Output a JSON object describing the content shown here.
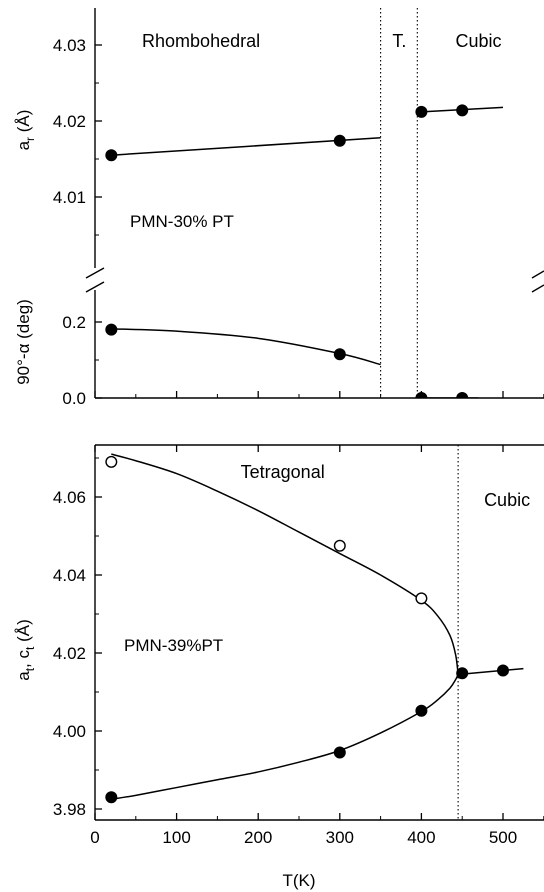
{
  "chart_data": [
    {
      "id": "a_r",
      "type": "scatter",
      "sample": "PMN-30% PT",
      "ylabel": "a_r (Å)",
      "ylabel_main": "a",
      "ylabel_sub": "r",
      "ylabel_unit": " (Å)",
      "xlim": [
        0,
        550
      ],
      "ylim": [
        4.0,
        4.035
      ],
      "yticks": [
        4.01,
        4.02,
        4.03
      ],
      "ytick_labels": [
        "4.01",
        "4.02",
        "4.03"
      ],
      "regions": [
        {
          "label": "Rhombohedral",
          "from": 0,
          "to": 350
        },
        {
          "label": "T.",
          "from": 350,
          "to": 395
        },
        {
          "label": "Cubic",
          "from": 395,
          "to": 550
        }
      ],
      "boundaries": [
        350,
        395
      ],
      "series": [
        {
          "marker": "filled",
          "x": [
            20,
            300,
            400,
            450
          ],
          "y": [
            4.0155,
            4.0174,
            4.0212,
            4.0214
          ]
        }
      ],
      "fits": [
        {
          "x": [
            20,
            350
          ],
          "y": [
            4.0155,
            4.0178
          ]
        },
        {
          "x": [
            400,
            500
          ],
          "y": [
            4.0212,
            4.0218
          ]
        }
      ],
      "grid": false
    },
    {
      "id": "alpha",
      "type": "scatter",
      "ylabel": "90°-α (deg)",
      "xlim": [
        0,
        550
      ],
      "ylim": [
        -0.01,
        0.28
      ],
      "yticks": [
        0.0,
        0.2
      ],
      "ytick_labels": [
        "0.0",
        "0.2"
      ],
      "boundaries": [
        350,
        395
      ],
      "series": [
        {
          "marker": "filled",
          "x": [
            20,
            300,
            400,
            450
          ],
          "y": [
            0.18,
            0.115,
            0.0,
            0.0
          ]
        }
      ],
      "fits": [
        {
          "x": [
            20,
            100,
            200,
            300,
            350
          ],
          "y": [
            0.182,
            0.176,
            0.157,
            0.117,
            0.088
          ]
        },
        {
          "x": [
            395,
            470
          ],
          "y": [
            0.0,
            0.0
          ]
        }
      ],
      "grid": false
    },
    {
      "id": "at_ct",
      "type": "scatter",
      "sample": "PMN-39%PT",
      "ylabel": "a_t, c_t (Å)",
      "ylabel_main1": "a",
      "ylabel_sub1": "t",
      "ylabel_mid": ", c",
      "ylabel_sub2": "t",
      "ylabel_unit": " (Å)",
      "xlabel": "T(K)",
      "xlim": [
        0,
        550
      ],
      "xticks": [
        0,
        100,
        200,
        300,
        400,
        500
      ],
      "xtick_labels": [
        "0",
        "100",
        "200",
        "300",
        "400",
        "500"
      ],
      "ylim": [
        3.977,
        4.079
      ],
      "yticks": [
        3.98,
        4.0,
        4.02,
        4.04,
        4.06
      ],
      "ytick_labels": [
        "3.98",
        "4.00",
        "4.02",
        "4.04",
        "4.06"
      ],
      "regions": [
        {
          "label": "Tetragonal",
          "from": 0,
          "to": 445
        },
        {
          "label": "Cubic",
          "from": 445,
          "to": 550
        }
      ],
      "boundaries": [
        445
      ],
      "series": [
        {
          "marker": "open",
          "x": [
            20,
            300,
            400
          ],
          "y": [
            4.069,
            4.0475,
            4.034
          ],
          "yerr": [
            0.0012,
            0.0012,
            0.0008
          ]
        },
        {
          "marker": "filled",
          "x": [
            20,
            300,
            400,
            450,
            500
          ],
          "y": [
            3.983,
            3.9945,
            4.0052,
            4.0148,
            4.0155
          ],
          "yerr": [
            0.0012,
            0.0015,
            0.0008,
            0.0008,
            0.0008
          ]
        }
      ],
      "fits": [
        {
          "x": [
            20,
            50,
            100,
            150,
            200,
            250,
            300,
            350,
            400,
            420,
            435,
            442,
            445
          ],
          "y": [
            4.071,
            4.0693,
            4.066,
            4.0615,
            4.0565,
            4.051,
            4.0455,
            4.04,
            4.0335,
            4.0295,
            4.0245,
            4.0195,
            4.0145
          ]
        },
        {
          "x": [
            20,
            50,
            100,
            150,
            200,
            250,
            300,
            350,
            400,
            420,
            435,
            442,
            445
          ],
          "y": [
            3.9825,
            3.9835,
            3.9855,
            3.9875,
            3.9895,
            3.992,
            3.995,
            3.9995,
            4.005,
            4.008,
            4.011,
            4.0132,
            4.0145
          ]
        },
        {
          "x": [
            445,
            525
          ],
          "y": [
            4.0145,
            4.016
          ]
        }
      ],
      "grid": false
    }
  ]
}
